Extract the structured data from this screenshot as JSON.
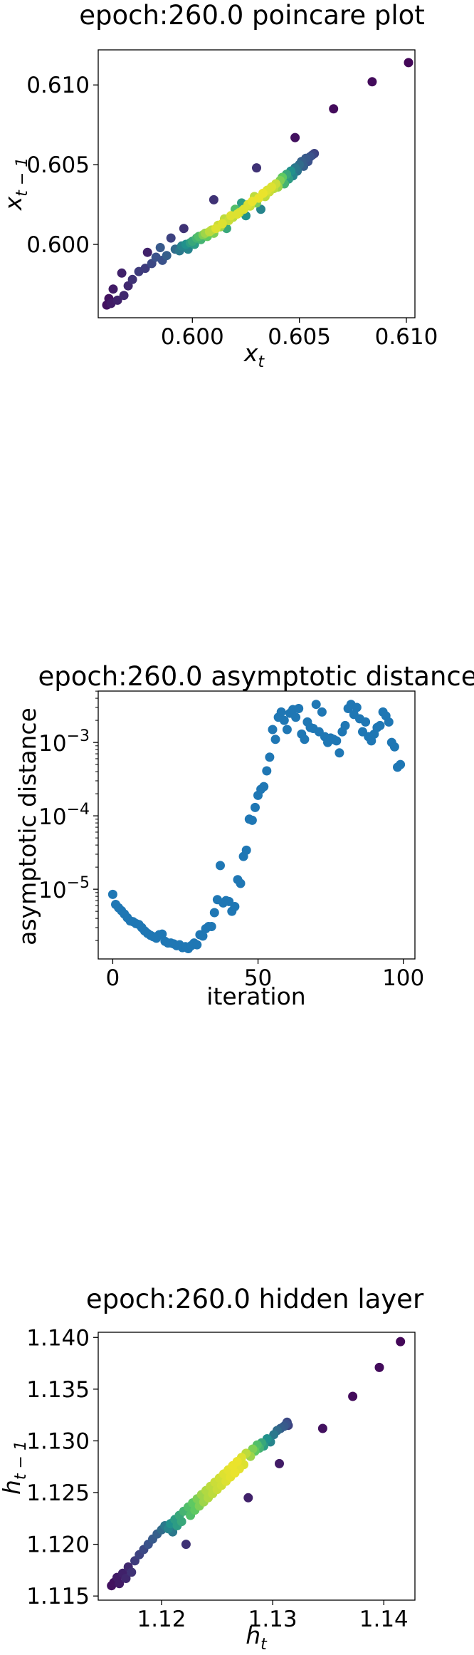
{
  "chart_data": [
    {
      "type": "scatter",
      "title": "epoch:260.0 poincare plot",
      "xlabel_base": "x",
      "xlabel_sub": "t",
      "ylabel_base": "x",
      "ylabel_sub": "t − 1",
      "xlim": [
        0.5956,
        0.6104
      ],
      "ylim": [
        0.5954,
        0.6122
      ],
      "xticks": [
        "0.600",
        "0.605",
        "0.610"
      ],
      "xtick_values": [
        0.6,
        0.605,
        0.61
      ],
      "yticks": [
        "0.600",
        "0.605",
        "0.610"
      ],
      "ytick_values": [
        0.6,
        0.605,
        0.61
      ],
      "color_note": "viridis density coloring (purple = sparse, yellow = dense)",
      "points": [
        [
          0.596,
          0.5962,
          0.05
        ],
        [
          0.5961,
          0.5966,
          0.05
        ],
        [
          0.5962,
          0.5963,
          0.08
        ],
        [
          0.5963,
          0.5972,
          0.08
        ],
        [
          0.5965,
          0.5965,
          0.1
        ],
        [
          0.5967,
          0.5982,
          0.1
        ],
        [
          0.5968,
          0.5968,
          0.12
        ],
        [
          0.597,
          0.5974,
          0.12
        ],
        [
          0.5972,
          0.5978,
          0.15
        ],
        [
          0.5975,
          0.5983,
          0.18
        ],
        [
          0.5978,
          0.5985,
          0.18
        ],
        [
          0.5979,
          0.5995,
          0.1
        ],
        [
          0.5981,
          0.5988,
          0.22
        ],
        [
          0.5983,
          0.5992,
          0.25
        ],
        [
          0.5985,
          0.5998,
          0.28
        ],
        [
          0.5986,
          0.599,
          0.25
        ],
        [
          0.5988,
          0.5993,
          0.3
        ],
        [
          0.599,
          0.6004,
          0.2
        ],
        [
          0.5992,
          0.5997,
          0.35
        ],
        [
          0.5994,
          0.5996,
          0.4
        ],
        [
          0.5995,
          0.5999,
          0.45
        ],
        [
          0.5996,
          0.601,
          0.15
        ],
        [
          0.5997,
          0.6,
          0.5
        ],
        [
          0.5998,
          0.5997,
          0.45
        ],
        [
          0.5999,
          0.6001,
          0.55
        ],
        [
          0.6,
          0.6002,
          0.6
        ],
        [
          0.6001,
          0.6,
          0.55
        ],
        [
          0.6002,
          0.6004,
          0.65
        ],
        [
          0.6003,
          0.6005,
          0.7
        ],
        [
          0.6004,
          0.6003,
          0.65
        ],
        [
          0.6005,
          0.6006,
          0.8
        ],
        [
          0.6006,
          0.6007,
          0.85
        ],
        [
          0.6007,
          0.6005,
          0.75
        ],
        [
          0.6008,
          0.6008,
          0.9
        ],
        [
          0.6009,
          0.6009,
          0.9
        ],
        [
          0.601,
          0.6007,
          0.8
        ],
        [
          0.601,
          0.6028,
          0.15
        ],
        [
          0.6011,
          0.601,
          0.95
        ],
        [
          0.6012,
          0.6012,
          0.92
        ],
        [
          0.6013,
          0.6011,
          0.85
        ],
        [
          0.6014,
          0.6013,
          0.95
        ],
        [
          0.6015,
          0.6016,
          0.9
        ],
        [
          0.6016,
          0.601,
          0.6
        ],
        [
          0.6017,
          0.6015,
          0.92
        ],
        [
          0.6018,
          0.6018,
          0.95
        ],
        [
          0.6019,
          0.6017,
          0.9
        ],
        [
          0.602,
          0.6022,
          0.7
        ],
        [
          0.6021,
          0.6019,
          0.95
        ],
        [
          0.6022,
          0.602,
          0.92
        ],
        [
          0.6023,
          0.6026,
          0.55
        ],
        [
          0.6024,
          0.6022,
          0.95
        ],
        [
          0.6025,
          0.6018,
          0.5
        ],
        [
          0.6026,
          0.6025,
          0.95
        ],
        [
          0.6027,
          0.6024,
          0.92
        ],
        [
          0.6028,
          0.6027,
          0.97
        ],
        [
          0.6029,
          0.603,
          0.9
        ],
        [
          0.603,
          0.6026,
          0.8
        ],
        [
          0.603,
          0.6048,
          0.15
        ],
        [
          0.6031,
          0.6029,
          0.97
        ],
        [
          0.6032,
          0.6022,
          0.45
        ],
        [
          0.6033,
          0.6032,
          0.97
        ],
        [
          0.6034,
          0.603,
          0.9
        ],
        [
          0.6035,
          0.6034,
          0.95
        ],
        [
          0.6036,
          0.6033,
          0.92
        ],
        [
          0.6037,
          0.6036,
          0.95
        ],
        [
          0.6038,
          0.6035,
          0.9
        ],
        [
          0.6039,
          0.6038,
          0.92
        ],
        [
          0.604,
          0.6036,
          0.85
        ],
        [
          0.6041,
          0.604,
          0.8
        ],
        [
          0.6042,
          0.6042,
          0.75
        ],
        [
          0.6043,
          0.6038,
          0.65
        ],
        [
          0.6044,
          0.6044,
          0.6
        ],
        [
          0.6045,
          0.6041,
          0.55
        ],
        [
          0.6046,
          0.6046,
          0.5
        ],
        [
          0.6047,
          0.6043,
          0.45
        ],
        [
          0.6048,
          0.6048,
          0.4
        ],
        [
          0.6049,
          0.6046,
          0.38
        ],
        [
          0.605,
          0.605,
          0.35
        ],
        [
          0.6051,
          0.6052,
          0.3
        ],
        [
          0.6052,
          0.6049,
          0.3
        ],
        [
          0.6053,
          0.6054,
          0.28
        ],
        [
          0.6054,
          0.6052,
          0.25
        ],
        [
          0.6055,
          0.6055,
          0.25
        ],
        [
          0.6056,
          0.6056,
          0.22
        ],
        [
          0.6057,
          0.6057,
          0.2
        ],
        [
          0.6048,
          0.6067,
          0.05
        ],
        [
          0.6066,
          0.6085,
          0.03
        ],
        [
          0.6084,
          0.6102,
          0.03
        ],
        [
          0.6101,
          0.6114,
          0.02
        ]
      ]
    },
    {
      "type": "scatter",
      "title": "epoch:260.0 asymptotic distance",
      "xlabel": "iteration",
      "ylabel": "asymptotic distance",
      "xlim": [
        -5,
        104
      ],
      "ylim_log10": [
        -5.95,
        -2.3
      ],
      "yscale": "log",
      "xticks": [
        "0",
        "50",
        "100"
      ],
      "xtick_values": [
        0,
        50,
        100
      ],
      "ytick_labels": [
        {
          "base": "10",
          "exp": "−3",
          "value": -3
        },
        {
          "base": "10",
          "exp": "−4",
          "value": -4
        },
        {
          "base": "10",
          "exp": "−5",
          "value": -5
        }
      ],
      "color": "#1f77b4",
      "x": [
        0,
        1,
        2,
        3,
        4,
        5,
        6,
        7,
        8,
        9,
        10,
        11,
        12,
        13,
        14,
        15,
        16,
        17,
        18,
        19,
        20,
        21,
        22,
        23,
        24,
        25,
        26,
        27,
        28,
        29,
        30,
        31,
        32,
        33,
        34,
        35,
        36,
        37,
        38,
        39,
        40,
        41,
        42,
        43,
        44,
        45,
        46,
        47,
        48,
        49,
        50,
        51,
        52,
        53,
        54,
        55,
        56,
        57,
        58,
        59,
        60,
        61,
        62,
        63,
        64,
        65,
        66,
        67,
        68,
        69,
        70,
        71,
        72,
        73,
        74,
        75,
        76,
        77,
        78,
        79,
        80,
        81,
        82,
        83,
        84,
        85,
        86,
        87,
        88,
        89,
        90,
        91,
        92,
        93,
        94,
        95,
        96,
        97,
        98,
        99
      ],
      "y": [
        8.5e-06,
        6.2e-06,
        5.6e-06,
        5.1e-06,
        4.6e-06,
        4.1e-06,
        3.7e-06,
        3.6e-06,
        3.4e-06,
        3.3e-06,
        3e-06,
        2.7e-06,
        2.5e-06,
        2.35e-06,
        2.25e-06,
        2.15e-06,
        2.4e-06,
        2.45e-06,
        1.95e-06,
        1.85e-06,
        1.85e-06,
        1.8e-06,
        1.7e-06,
        1.75e-06,
        1.6e-06,
        1.65e-06,
        1.55e-06,
        1.7e-06,
        1.85e-06,
        1.75e-06,
        2.4e-06,
        2.3e-06,
        2.9e-06,
        3.1e-06,
        3.1e-06,
        4.8e-06,
        7.2e-06,
        2.1e-05,
        6.5e-06,
        7e-06,
        6.8e-06,
        5e-06,
        5.8e-06,
        1.35e-05,
        1.2e-05,
        2.8e-05,
        3.4e-05,
        9e-05,
        8.7e-05,
        0.00013,
        0.00019,
        0.00023,
        0.00025,
        0.00041,
        0.00063,
        0.0015,
        0.0011,
        0.0022,
        0.0026,
        0.002,
        0.0015,
        0.0025,
        0.0028,
        0.0022,
        0.0029,
        0.0013,
        0.0011,
        0.0019,
        0.0016,
        0.00155,
        0.0033,
        0.0014,
        0.0026,
        0.0012,
        0.001,
        0.00115,
        0.0011,
        0.00105,
        0.00072,
        0.0014,
        0.0017,
        0.0029,
        0.0033,
        0.0024,
        0.003,
        0.0021,
        0.0014,
        0.0019,
        0.0012,
        0.00105,
        0.0013,
        0.0016,
        0.0017,
        0.0026,
        0.0023,
        0.0019,
        0.001,
        0.00087,
        0.00046,
        0.0005
      ]
    },
    {
      "type": "scatter",
      "title": "epoch:260.0 hidden layer",
      "xlabel_base": "h",
      "xlabel_sub": "t",
      "ylabel_base": "h",
      "ylabel_sub": "t − 1",
      "xlim": [
        1.1143,
        1.1428
      ],
      "ylim": [
        1.1146,
        1.1405
      ],
      "xticks": [
        "1.12",
        "1.13",
        "1.14"
      ],
      "xtick_values": [
        1.12,
        1.13,
        1.14
      ],
      "yticks": [
        "1.115",
        "1.120",
        "1.125",
        "1.130",
        "1.135",
        "1.140"
      ],
      "ytick_values": [
        1.115,
        1.12,
        1.125,
        1.13,
        1.135,
        1.14
      ],
      "color_note": "viridis density coloring (purple = sparse, yellow = dense)",
      "points": [
        [
          1.1155,
          1.116,
          0.05
        ],
        [
          1.1157,
          1.1163,
          0.05
        ],
        [
          1.116,
          1.1168,
          0.08
        ],
        [
          1.1162,
          1.1162,
          0.08
        ],
        [
          1.1165,
          1.1172,
          0.1
        ],
        [
          1.1168,
          1.1167,
          0.12
        ],
        [
          1.117,
          1.1178,
          0.12
        ],
        [
          1.1173,
          1.1173,
          0.15
        ],
        [
          1.1176,
          1.1184,
          0.18
        ],
        [
          1.118,
          1.119,
          0.2
        ],
        [
          1.1184,
          1.1195,
          0.22
        ],
        [
          1.1188,
          1.12,
          0.25
        ],
        [
          1.1192,
          1.1205,
          0.28
        ],
        [
          1.1196,
          1.121,
          0.3
        ],
        [
          1.12,
          1.1214,
          0.35
        ],
        [
          1.1203,
          1.1218,
          0.4
        ],
        [
          1.1206,
          1.1215,
          0.45
        ],
        [
          1.1208,
          1.122,
          0.5
        ],
        [
          1.121,
          1.1212,
          0.4
        ],
        [
          1.1212,
          1.1224,
          0.55
        ],
        [
          1.1214,
          1.1218,
          0.55
        ],
        [
          1.1216,
          1.1228,
          0.6
        ],
        [
          1.1218,
          1.1222,
          0.6
        ],
        [
          1.122,
          1.1232,
          0.65
        ],
        [
          1.1222,
          1.12,
          0.15
        ],
        [
          1.1224,
          1.1236,
          0.7
        ],
        [
          1.1226,
          1.1228,
          0.7
        ],
        [
          1.1228,
          1.124,
          0.75
        ],
        [
          1.123,
          1.1233,
          0.75
        ],
        [
          1.1232,
          1.1244,
          0.8
        ],
        [
          1.1234,
          1.1237,
          0.8
        ],
        [
          1.1236,
          1.1248,
          0.85
        ],
        [
          1.1238,
          1.1241,
          0.85
        ],
        [
          1.124,
          1.1252,
          0.88
        ],
        [
          1.1242,
          1.1245,
          0.88
        ],
        [
          1.1244,
          1.1256,
          0.9
        ],
        [
          1.1246,
          1.1249,
          0.9
        ],
        [
          1.1248,
          1.126,
          0.92
        ],
        [
          1.125,
          1.1253,
          0.92
        ],
        [
          1.1252,
          1.1264,
          0.93
        ],
        [
          1.1254,
          1.1257,
          0.93
        ],
        [
          1.1256,
          1.1268,
          0.95
        ],
        [
          1.1258,
          1.1261,
          0.95
        ],
        [
          1.126,
          1.1272,
          0.96
        ],
        [
          1.1262,
          1.1265,
          0.96
        ],
        [
          1.1264,
          1.1276,
          0.97
        ],
        [
          1.1266,
          1.1269,
          0.97
        ],
        [
          1.1268,
          1.128,
          0.97
        ],
        [
          1.127,
          1.1273,
          0.96
        ],
        [
          1.1272,
          1.1284,
          0.95
        ],
        [
          1.1274,
          1.1277,
          0.95
        ],
        [
          1.1276,
          1.1288,
          0.9
        ],
        [
          1.1278,
          1.1245,
          0.1
        ],
        [
          1.128,
          1.1285,
          0.85
        ],
        [
          1.1282,
          1.1292,
          0.8
        ],
        [
          1.1284,
          1.129,
          0.75
        ],
        [
          1.1286,
          1.1296,
          0.7
        ],
        [
          1.1288,
          1.1293,
          0.65
        ],
        [
          1.129,
          1.1298,
          0.6
        ],
        [
          1.1292,
          1.1295,
          0.55
        ],
        [
          1.1295,
          1.1302,
          0.5
        ],
        [
          1.1298,
          1.1299,
          0.45
        ],
        [
          1.1301,
          1.1306,
          0.4
        ],
        [
          1.1304,
          1.131,
          0.35
        ],
        [
          1.1307,
          1.1312,
          0.3
        ],
        [
          1.131,
          1.1314,
          0.28
        ],
        [
          1.1312,
          1.1316,
          0.25
        ],
        [
          1.1313,
          1.1318,
          0.22
        ],
        [
          1.1314,
          1.1315,
          0.2
        ],
        [
          1.1306,
          1.1278,
          0.08
        ],
        [
          1.1345,
          1.1312,
          0.05
        ],
        [
          1.1372,
          1.1343,
          0.03
        ],
        [
          1.1396,
          1.1371,
          0.03
        ],
        [
          1.1415,
          1.1396,
          0.02
        ]
      ]
    }
  ]
}
